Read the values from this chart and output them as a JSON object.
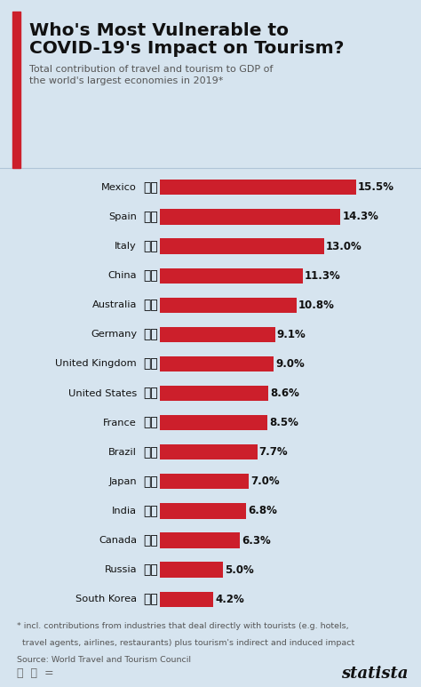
{
  "title_line1": "Who's Most Vulnerable to",
  "title_line2": "COVID-19's Impact on Tourism?",
  "subtitle": "Total contribution of travel and tourism to GDP of\nthe world's largest economies in 2019*",
  "countries": [
    "Mexico",
    "Spain",
    "Italy",
    "China",
    "Australia",
    "Germany",
    "United Kingdom",
    "United States",
    "France",
    "Brazil",
    "Japan",
    "India",
    "Canada",
    "Russia",
    "South Korea"
  ],
  "values": [
    15.5,
    14.3,
    13.0,
    11.3,
    10.8,
    9.1,
    9.0,
    8.6,
    8.5,
    7.7,
    7.0,
    6.8,
    6.3,
    5.0,
    4.2
  ],
  "bar_color": "#cc1f2b",
  "bg_color": "#d6e4ef",
  "title_color": "#111111",
  "subtitle_color": "#555555",
  "value_color": "#111111",
  "footnote_line1": "* incl. contributions from industries that deal directly with tourists (e.g. hotels,",
  "footnote_line2": "  travel agents, airlines, restaurants) plus tourism's indirect and induced impact",
  "footnote_line3": "Source: World Travel and Tourism Council",
  "accent_color": "#cc1f2b",
  "max_val": 15.5,
  "flag_emojis": [
    "🇲🇽",
    "🇪🇸",
    "🇮🇹",
    "🇨🇳",
    "🇦🇺",
    "🇩🇪",
    "🇬🇧",
    "🇺🇸",
    "🇫🇷",
    "🇧🇷",
    "🇯🇵",
    "🇮🇳",
    "🇨🇦",
    "🇷🇺",
    "🇰🇷"
  ]
}
